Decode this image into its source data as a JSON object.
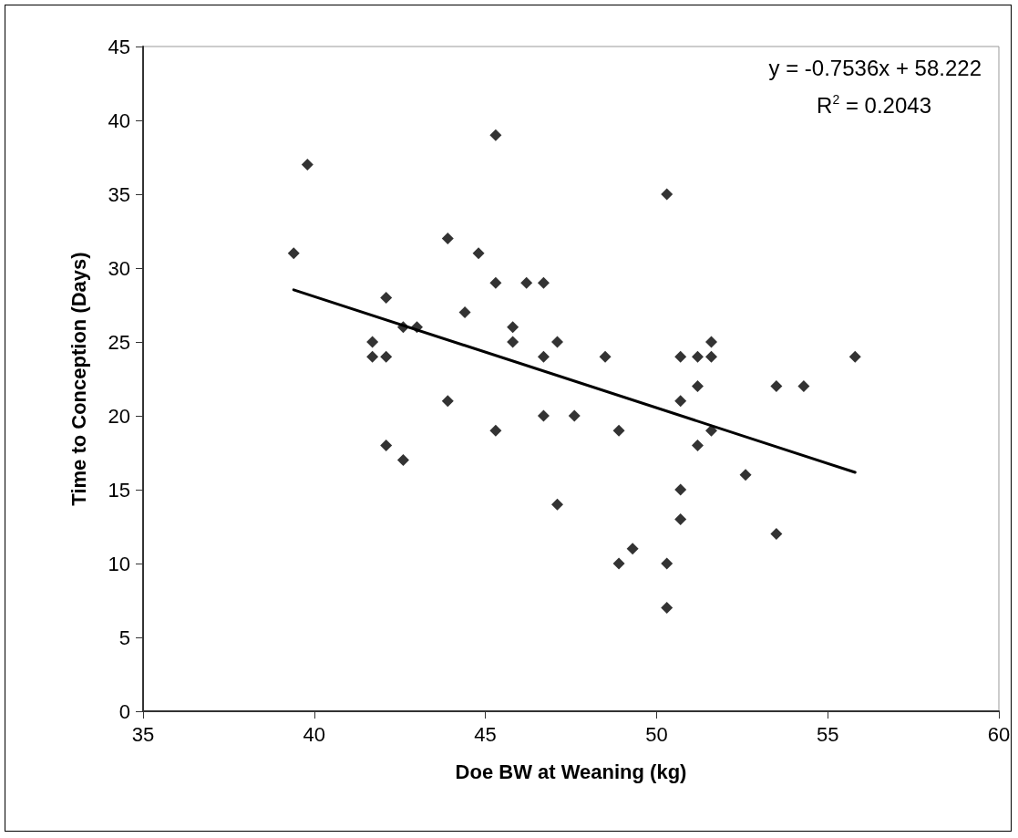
{
  "chart_data": {
    "type": "scatter",
    "xlabel": "Doe BW at Weaning (kg)",
    "ylabel": "Time to Conception (Days)",
    "annotations": [
      "y = -0.7536x + 58.222",
      "R$^{2}$ = 0.2043"
    ],
    "xlim": [
      35,
      60
    ],
    "xticks": [
      35,
      40,
      45,
      50,
      55,
      60
    ],
    "ylim": [
      0,
      45
    ],
    "yticks": [
      0,
      5,
      10,
      15,
      20,
      25,
      30,
      35,
      40,
      45
    ],
    "grid": false,
    "series": [
      {
        "marker": "diamond",
        "color": "#000000",
        "x": [
          39.4,
          39.8,
          41.7,
          41.7,
          42.1,
          42.1,
          42.1,
          42.6,
          42.6,
          43.0,
          43.9,
          43.9,
          44.4,
          44.8,
          45.3,
          45.3,
          45.3,
          45.8,
          45.8,
          46.2,
          46.7,
          46.7,
          46.7,
          47.1,
          47.1,
          47.6,
          48.5,
          48.9,
          48.9,
          49.3,
          50.3,
          50.3,
          50.3,
          50.7,
          50.7,
          50.7,
          50.7,
          51.2,
          51.2,
          51.2,
          51.6,
          51.6,
          51.6,
          52.6,
          53.5,
          53.5,
          54.3,
          55.8
        ],
        "values": [
          31,
          37,
          25,
          24,
          28,
          24,
          18,
          26,
          17,
          26,
          32,
          21,
          27,
          31,
          39,
          29,
          19,
          26,
          25,
          29,
          29,
          24,
          20,
          25,
          14,
          20,
          24,
          19,
          10,
          11,
          35,
          10,
          7,
          24,
          21,
          15,
          13,
          24,
          22,
          18,
          25,
          24,
          19,
          16,
          22,
          12,
          22,
          24
        ]
      },
      {
        "type": "line",
        "marker": "none",
        "line_style": "solid",
        "color": "#000000",
        "x": [
          39.4,
          55.8
        ],
        "values": [
          28.53,
          16.17
        ]
      }
    ]
  }
}
